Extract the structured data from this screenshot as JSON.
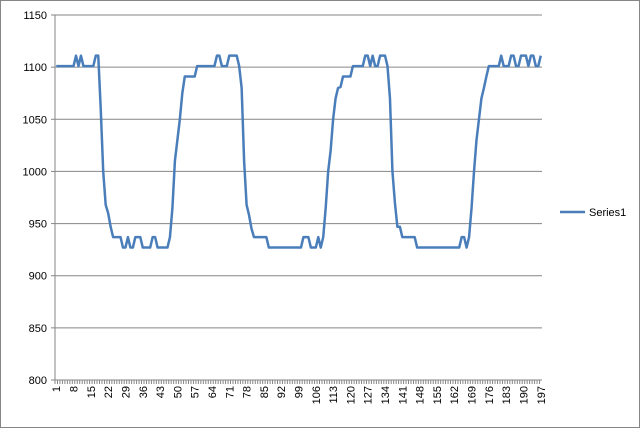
{
  "chart_data": {
    "type": "line",
    "categories": [
      1,
      null,
      null,
      null,
      null,
      null,
      null,
      8,
      null,
      null,
      null,
      null,
      null,
      null,
      15,
      null,
      null,
      null,
      null,
      null,
      null,
      22,
      null,
      null,
      null,
      null,
      null,
      null,
      29,
      null,
      null,
      null,
      null,
      null,
      null,
      36,
      null,
      null,
      null,
      null,
      null,
      null,
      43,
      null,
      null,
      null,
      null,
      null,
      null,
      50,
      null,
      null,
      null,
      null,
      null,
      null,
      57,
      null,
      null,
      null,
      null,
      null,
      null,
      64,
      null,
      null,
      null,
      null,
      null,
      null,
      71,
      null,
      null,
      null,
      null,
      null,
      null,
      78,
      null,
      null,
      null,
      null,
      null,
      null,
      85,
      null,
      null,
      null,
      null,
      null,
      null,
      92,
      null,
      null,
      null,
      null,
      null,
      null,
      99,
      null,
      null,
      null,
      null,
      null,
      null,
      106,
      null,
      null,
      null,
      null,
      null,
      null,
      113,
      null,
      null,
      null,
      null,
      null,
      null,
      120,
      null,
      null,
      null,
      null,
      null,
      null,
      127,
      null,
      null,
      null,
      null,
      null,
      null,
      134,
      null,
      null,
      null,
      null,
      null,
      null,
      141,
      null,
      null,
      null,
      null,
      null,
      null,
      148,
      null,
      null,
      null,
      null,
      null,
      null,
      155,
      null,
      null,
      null,
      null,
      null,
      null,
      162,
      null,
      null,
      null,
      null,
      null,
      null,
      169,
      null,
      null,
      null,
      null,
      null,
      null,
      176,
      null,
      null,
      null,
      null,
      null,
      null,
      183,
      null,
      null,
      null,
      null,
      null,
      null,
      190,
      null,
      null,
      null,
      null,
      null,
      null,
      197
    ],
    "series": [
      {
        "name": "Series1",
        "color": "#4a7ebb",
        "values": [
          1101,
          1101,
          1101,
          1101,
          1101,
          1101,
          1101,
          1101,
          1111,
          1101,
          1111,
          1101,
          1101,
          1101,
          1101,
          1101,
          1111,
          1111,
          1060,
          1000,
          968,
          960,
          947,
          937,
          937,
          937,
          937,
          927,
          927,
          937,
          927,
          927,
          937,
          937,
          937,
          927,
          927,
          927,
          927,
          937,
          937,
          927,
          927,
          927,
          927,
          927,
          937,
          965,
          1010,
          1030,
          1050,
          1075,
          1091,
          1091,
          1091,
          1091,
          1091,
          1101,
          1101,
          1101,
          1101,
          1101,
          1101,
          1101,
          1101,
          1111,
          1111,
          1101,
          1101,
          1101,
          1111,
          1111,
          1111,
          1111,
          1101,
          1080,
          1010,
          968,
          958,
          945,
          937,
          937,
          937,
          937,
          937,
          937,
          927,
          927,
          927,
          927,
          927,
          927,
          927,
          927,
          927,
          927,
          927,
          927,
          927,
          927,
          937,
          937,
          937,
          927,
          927,
          927,
          937,
          927,
          937,
          965,
          1000,
          1020,
          1050,
          1070,
          1080,
          1081,
          1091,
          1091,
          1091,
          1091,
          1101,
          1101,
          1101,
          1101,
          1101,
          1111,
          1111,
          1101,
          1111,
          1101,
          1101,
          1111,
          1111,
          1111,
          1101,
          1070,
          1000,
          970,
          947,
          947,
          937,
          937,
          937,
          937,
          937,
          937,
          927,
          927,
          927,
          927,
          927,
          927,
          927,
          927,
          927,
          927,
          927,
          927,
          927,
          927,
          927,
          927,
          927,
          927,
          937,
          937,
          927,
          937,
          965,
          1000,
          1030,
          1050,
          1070,
          1080,
          1091,
          1101,
          1101,
          1101,
          1101,
          1101,
          1111,
          1101,
          1101,
          1101,
          1111,
          1111,
          1101,
          1101,
          1111,
          1111,
          1111,
          1101,
          1111,
          1111,
          1101,
          1101,
          1111
        ]
      }
    ],
    "ylim": [
      800,
      1150
    ],
    "yticks": [
      800,
      850,
      900,
      950,
      1000,
      1050,
      1100,
      1150
    ],
    "grid": true,
    "legend": "right"
  }
}
